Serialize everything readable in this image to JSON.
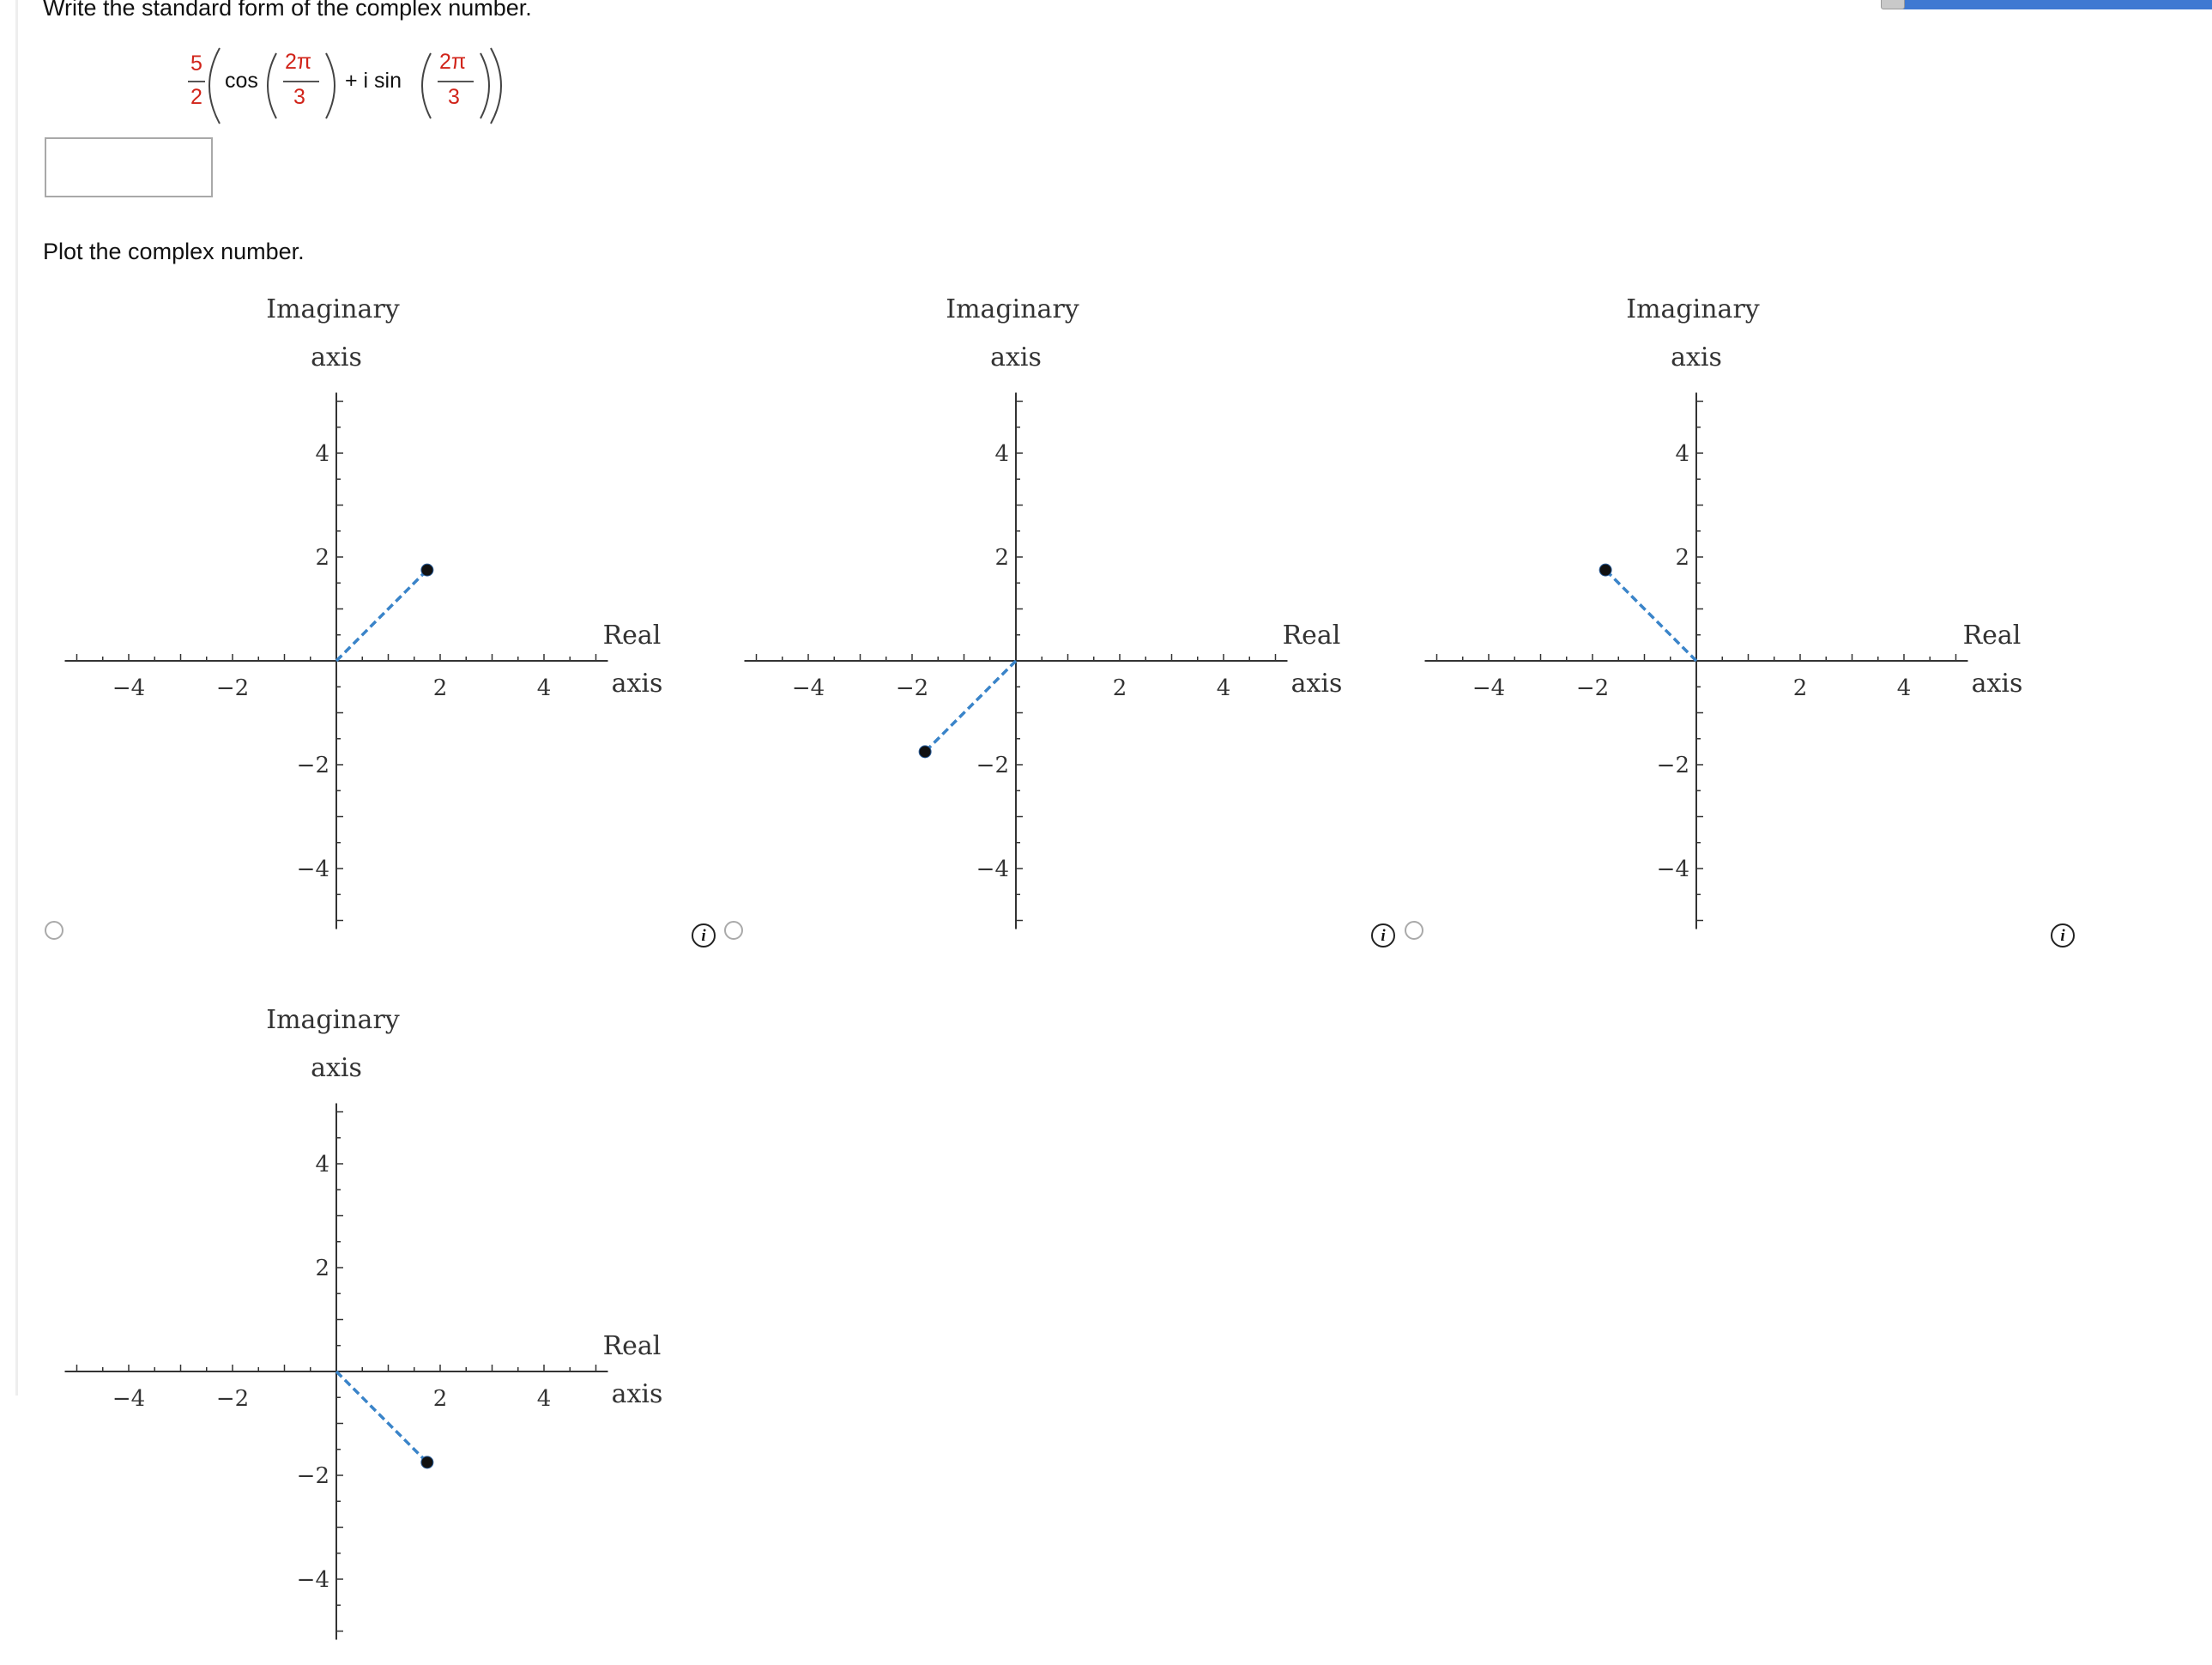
{
  "question": {
    "prompt": "Write the standard form of the complex number.",
    "expression": {
      "coef_num": "5",
      "coef_den": "2",
      "cos": "cos",
      "plus_i_sin": "+ i sin",
      "angle_num": "2π",
      "angle_den": "3"
    },
    "answer_value": "",
    "plot_prompt": "Plot the complex number."
  },
  "colors": {
    "fraction_numbers": "#d1241a",
    "segment": "#3a84c9",
    "point": "#111111"
  },
  "axis_labels": {
    "y_top": "Imaginary",
    "y_bottom": "axis",
    "x_top": "Real",
    "x_bottom": "axis"
  },
  "chart_data": [
    {
      "type": "scatter",
      "option": 1,
      "xlim": [
        -5,
        5
      ],
      "ylim": [
        -5,
        5
      ],
      "xticks": [
        -4,
        -2,
        2,
        4
      ],
      "yticks": [
        -4,
        -2,
        2,
        4
      ],
      "point": [
        1.75,
        1.75
      ],
      "segment_from_origin": true
    },
    {
      "type": "scatter",
      "option": 2,
      "xlim": [
        -5,
        5
      ],
      "ylim": [
        -5,
        5
      ],
      "xticks": [
        -4,
        -2,
        2,
        4
      ],
      "yticks": [
        -4,
        -2,
        2,
        4
      ],
      "point": [
        -1.75,
        -1.75
      ],
      "segment_from_origin": true
    },
    {
      "type": "scatter",
      "option": 3,
      "xlim": [
        -5,
        5
      ],
      "ylim": [
        -5,
        5
      ],
      "xticks": [
        -4,
        -2,
        2,
        4
      ],
      "yticks": [
        -4,
        -2,
        2,
        4
      ],
      "point": [
        -1.75,
        1.75
      ],
      "segment_from_origin": true
    },
    {
      "type": "scatter",
      "option": 4,
      "xlim": [
        -5,
        5
      ],
      "ylim": [
        -5,
        5
      ],
      "xticks": [
        -4,
        -2,
        2,
        4
      ],
      "yticks": [
        -4,
        -2,
        2,
        4
      ],
      "point": [
        1.75,
        -1.75
      ],
      "segment_from_origin": true
    }
  ]
}
